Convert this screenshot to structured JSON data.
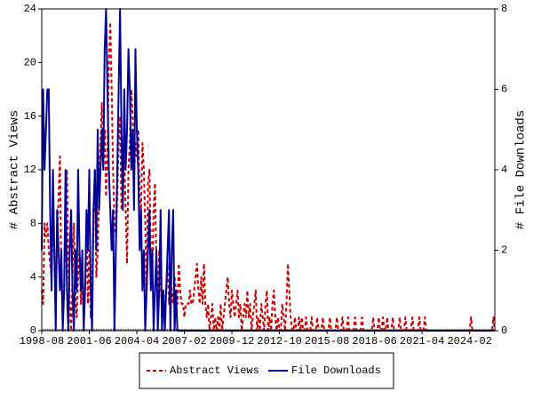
{
  "chart_data": {
    "type": "line",
    "ylabel": "# Abstract Views",
    "y2label": "# File Downloads",
    "ylim": [
      0,
      24
    ],
    "yticks": [
      0,
      4,
      8,
      12,
      16,
      20,
      24
    ],
    "y2lim": [
      0,
      8
    ],
    "y2ticks": [
      0,
      2,
      4,
      6,
      8
    ],
    "legend": "bottom",
    "categories": [
      "1998-08",
      null,
      null,
      null,
      null,
      null,
      null,
      null,
      null,
      null,
      null,
      null,
      null,
      null,
      null,
      null,
      null,
      null,
      null,
      null,
      null,
      null,
      null,
      null,
      null,
      null,
      null,
      null,
      null,
      null,
      null,
      null,
      null,
      null,
      "2001-06",
      null,
      null,
      null,
      null,
      null,
      null,
      null,
      null,
      null,
      null,
      null,
      null,
      null,
      null,
      null,
      null,
      null,
      null,
      null,
      null,
      null,
      null,
      null,
      null,
      null,
      null,
      null,
      null,
      null,
      null,
      null,
      null,
      null,
      "2004-04",
      null,
      null,
      null,
      null,
      null,
      null,
      null,
      null,
      null,
      null,
      null,
      null,
      null,
      null,
      null,
      null,
      null,
      null,
      null,
      null,
      null,
      null,
      null,
      null,
      null,
      null,
      null,
      null,
      null,
      null,
      null,
      null,
      null,
      "2007-02",
      null,
      null,
      null,
      null,
      null,
      null,
      null,
      null,
      null,
      null,
      null,
      null,
      null,
      null,
      null,
      null,
      null,
      null,
      null,
      null,
      null,
      null,
      null,
      null,
      null,
      null,
      null,
      null,
      null,
      null,
      null,
      null,
      null,
      "2009-12",
      null,
      null,
      null,
      null,
      null,
      null,
      null,
      null,
      null,
      null,
      null,
      null,
      null,
      null,
      null,
      null,
      null,
      null,
      null,
      null,
      null,
      null,
      null,
      null,
      null,
      null,
      null,
      null,
      null,
      null,
      null,
      null,
      null,
      "2012-10",
      null,
      null,
      null,
      null,
      null,
      null,
      null,
      null,
      null,
      null,
      null,
      null,
      null,
      null,
      null,
      null,
      null,
      null,
      null,
      null,
      null,
      null,
      null,
      null,
      null,
      null,
      null,
      null,
      null,
      null,
      null,
      null,
      null,
      "2015-08",
      null,
      null,
      null,
      null,
      null,
      null,
      null,
      null,
      null,
      null,
      null,
      null,
      null,
      null,
      null,
      null,
      null,
      null,
      null,
      null,
      null,
      null,
      null,
      null,
      null,
      null,
      null,
      null,
      null,
      null,
      null,
      null,
      null,
      "2018-06",
      null,
      null,
      null,
      null,
      null,
      null,
      null,
      null,
      null,
      null,
      null,
      null,
      null,
      null,
      null,
      null,
      null,
      null,
      null,
      null,
      null,
      null,
      null,
      null,
      null,
      null,
      null,
      null,
      null,
      null,
      null,
      null,
      null,
      "2021-04",
      null,
      null,
      null,
      null,
      null,
      null,
      null,
      null,
      null,
      null,
      null,
      null,
      null,
      null,
      null,
      null,
      null,
      null,
      null,
      null,
      null,
      null,
      null,
      null,
      null,
      null,
      null,
      null,
      null,
      null,
      null,
      null,
      null,
      "2024-02",
      null,
      null,
      null,
      null,
      null,
      null,
      null,
      null,
      null,
      null,
      null,
      null,
      null,
      null,
      null,
      null,
      null,
      null
    ],
    "series": [
      {
        "name": "Abstract Views",
        "color": "#cc0000",
        "dashed": true,
        "axis": "y",
        "values": [
          3,
          2,
          8,
          7,
          8,
          6,
          5,
          4,
          8,
          6,
          2,
          7,
          10,
          13,
          4,
          1,
          3,
          8,
          12,
          5,
          2,
          0,
          4,
          8,
          3,
          1,
          4,
          6,
          2,
          5,
          1,
          3,
          8,
          2,
          6,
          1,
          3,
          9,
          12,
          4,
          6,
          10,
          14,
          17,
          13,
          15,
          10,
          13,
          20,
          23,
          18,
          12,
          8,
          7,
          10,
          14,
          16,
          9,
          11,
          13,
          9,
          5,
          12,
          14,
          18,
          16,
          11,
          14,
          13,
          15,
          10,
          9,
          14,
          12,
          8,
          3,
          11,
          12,
          6,
          4,
          9,
          11,
          5,
          2,
          6,
          4,
          1,
          2,
          2,
          3,
          5,
          2,
          4,
          3,
          2,
          4,
          3,
          2,
          5,
          3,
          2,
          2,
          1,
          2,
          2,
          2,
          3,
          2,
          2,
          3,
          4,
          5,
          3,
          2,
          4,
          2,
          5,
          2,
          1,
          2,
          0,
          1,
          2,
          0,
          1,
          0,
          1,
          0,
          2,
          0,
          1,
          2,
          3,
          4,
          2,
          1,
          3,
          2,
          1,
          2,
          3,
          1,
          2,
          0,
          1,
          2,
          1,
          3,
          1,
          2,
          0,
          1,
          2,
          3,
          0,
          1,
          0,
          2,
          1,
          0,
          2,
          3,
          0,
          1,
          0,
          2,
          3,
          1,
          0,
          1,
          0,
          0,
          2,
          1,
          0,
          2,
          5,
          3,
          1,
          0,
          0,
          1,
          0,
          0,
          1,
          0,
          1,
          0,
          0,
          1,
          0,
          0,
          0,
          1,
          0,
          0,
          0,
          1,
          0,
          0,
          0,
          1,
          0,
          0,
          0,
          0,
          1,
          0,
          0,
          0,
          0,
          1,
          0,
          0,
          0,
          1,
          0,
          0,
          0,
          1,
          0,
          0,
          0,
          0,
          1,
          0,
          0,
          0,
          0,
          1,
          0,
          0,
          0,
          0,
          0,
          0,
          0,
          1,
          0,
          0,
          0,
          1,
          0,
          0,
          1,
          0,
          0,
          1,
          0,
          0,
          0,
          1,
          0,
          0,
          0,
          0,
          1,
          0,
          0,
          0,
          1,
          0,
          0,
          0,
          0,
          1,
          0,
          0,
          0,
          0,
          1,
          0,
          0,
          0,
          1,
          0,
          0,
          0,
          0,
          0,
          0,
          0,
          0,
          0,
          0,
          0,
          0,
          0,
          0,
          0,
          0,
          0,
          0,
          0,
          0,
          0,
          0,
          0,
          0,
          0,
          0,
          0,
          0,
          0,
          0,
          0,
          0,
          1,
          0,
          0,
          0,
          0,
          0,
          0,
          0,
          0,
          0,
          0,
          0,
          0,
          0,
          0,
          0,
          1,
          0
        ]
      },
      {
        "name": "File Downloads",
        "color": "#000099",
        "dashed": false,
        "axis": "y2",
        "values": [
          2,
          6,
          4,
          5,
          6,
          6,
          3,
          1,
          4,
          2,
          0,
          3,
          2,
          1,
          2,
          0,
          1,
          4,
          1,
          0,
          2,
          3,
          1,
          0,
          2,
          1,
          4,
          2,
          1,
          2,
          0,
          1,
          3,
          2,
          4,
          1,
          0,
          3,
          4,
          2,
          5,
          3,
          4,
          5,
          4,
          7,
          8,
          6,
          4,
          3,
          2,
          3,
          0,
          2,
          4,
          6,
          8,
          5,
          3,
          6,
          4,
          5,
          7,
          6,
          4,
          5,
          3,
          7,
          5,
          4,
          2,
          3,
          1,
          2,
          0,
          1,
          2,
          3,
          1,
          2,
          0,
          1,
          2,
          0,
          1,
          3,
          0,
          1,
          0,
          1,
          2,
          3,
          0,
          2,
          3,
          0,
          1,
          0,
          0,
          0,
          0,
          0,
          0,
          0,
          0,
          0,
          0,
          0,
          0,
          0,
          0,
          0,
          0,
          0,
          0,
          0,
          0,
          0,
          0,
          0,
          0,
          0,
          0,
          0,
          0,
          0,
          0,
          0,
          0,
          0,
          0,
          0,
          0,
          0,
          0,
          0,
          0,
          0,
          0,
          0,
          0,
          0,
          0,
          0,
          0,
          0,
          0,
          0,
          0,
          0,
          0,
          0,
          0,
          0,
          0,
          0,
          0,
          0,
          0,
          0,
          0,
          0,
          0,
          0,
          0,
          0,
          0,
          0,
          0,
          0,
          0,
          0,
          0,
          0,
          0,
          0,
          0,
          0,
          0,
          0,
          0,
          0,
          0,
          0,
          0,
          0,
          0,
          0,
          0,
          0,
          0,
          0,
          0,
          0,
          0,
          0,
          0,
          0,
          0,
          0,
          0,
          0,
          0,
          0,
          0,
          0,
          0,
          0,
          0,
          0,
          0,
          0,
          0,
          0,
          0,
          0,
          0,
          0,
          0,
          0,
          0,
          0,
          0,
          0,
          0,
          0,
          0,
          0,
          0,
          0,
          0,
          0,
          0,
          0,
          0,
          0,
          0,
          0,
          0,
          0,
          0,
          0,
          0,
          0,
          0,
          0,
          0,
          0,
          0,
          0,
          0,
          0,
          0,
          0,
          0,
          0,
          0,
          0,
          0,
          0,
          0,
          0,
          0,
          0,
          0,
          0,
          0,
          0,
          0,
          0,
          0,
          0,
          0,
          0,
          0,
          0,
          0,
          0,
          0,
          0,
          0,
          0,
          0,
          0,
          0,
          0,
          0,
          0,
          0,
          0,
          0,
          0,
          0,
          0,
          0,
          0,
          0,
          0,
          0,
          0,
          0,
          0,
          0,
          0,
          0,
          0,
          0,
          0,
          0,
          0,
          0,
          0,
          0,
          0,
          0,
          0,
          0,
          0,
          0,
          0,
          0,
          0,
          0,
          0,
          0
        ]
      }
    ]
  }
}
